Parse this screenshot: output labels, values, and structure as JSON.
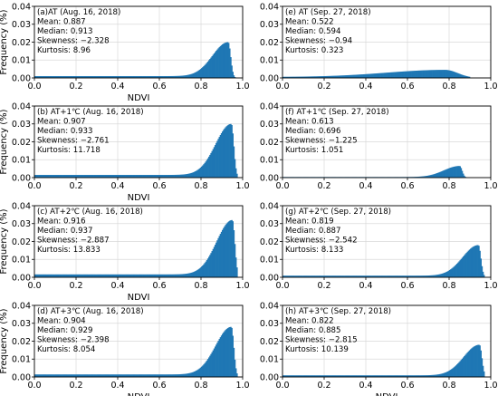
{
  "figure": {
    "theme": {
      "bar_color": "#1f77b4",
      "grid_color": "#d9d9d9",
      "axis_color": "#000000"
    }
  },
  "chart_data": [
    {
      "type": "bar",
      "xlabel": "NDVI",
      "ylabel": "Frequency (%)",
      "xlim": [
        0.0,
        1.0
      ],
      "ylim": [
        0.0,
        0.04
      ],
      "xticks": [
        "0.0",
        "0.2",
        "0.4",
        "0.6",
        "0.8",
        "1.0"
      ],
      "yticks": [
        "0.00",
        "0.01",
        "0.02",
        "0.03",
        "0.04"
      ],
      "grid": true,
      "annotation": [
        "(a)AT (Aug. 16, 2018)",
        "Mean: 0.887",
        "Median: 0.913",
        "Skewness: −2.328",
        "Kurtosis: 8.96"
      ],
      "distribution": {
        "shape": "left-skewed",
        "peak_ndvi": 0.93,
        "peak_frequency": 0.02,
        "min_ndvi": 0.0,
        "max_ndvi": 0.97
      }
    },
    {
      "type": "bar",
      "xlabel": "",
      "ylabel": "",
      "xlim": [
        0.0,
        1.0
      ],
      "ylim": [
        0.0,
        0.04
      ],
      "xticks": [
        "0.0",
        "0.2",
        "0.4",
        "0.6",
        "0.8",
        "1.0"
      ],
      "yticks": [
        "0.00",
        "0.01",
        "0.02",
        "0.03",
        "0.04"
      ],
      "grid": true,
      "annotation": [
        "(e) AT (Sep. 27, 2018)",
        "Mean: 0.522",
        "Median: 0.594",
        "Skewness: −0.94",
        "Kurtosis: 0.323"
      ],
      "distribution": {
        "shape": "broad",
        "peak_ndvi": 0.78,
        "peak_frequency": 0.0045,
        "min_ndvi": 0.0,
        "max_ndvi": 0.9
      }
    },
    {
      "type": "bar",
      "xlabel": "NDVI",
      "ylabel": "Frequency (%)",
      "xlim": [
        0.0,
        1.0
      ],
      "ylim": [
        0.0,
        0.04
      ],
      "xticks": [
        "0.0",
        "0.2",
        "0.4",
        "0.6",
        "0.8",
        "1.0"
      ],
      "yticks": [
        "0.00",
        "0.01",
        "0.02",
        "0.03",
        "0.04"
      ],
      "grid": true,
      "annotation": [
        "(b) AT+1℃ (Aug. 16, 2018)",
        "Mean: 0.907",
        "Median: 0.933",
        "Skewness: −2.761",
        "Kurtosis: 11.718"
      ],
      "distribution": {
        "shape": "left-skewed",
        "peak_ndvi": 0.945,
        "peak_frequency": 0.03,
        "min_ndvi": 0.0,
        "max_ndvi": 0.975
      }
    },
    {
      "type": "bar",
      "xlabel": "",
      "ylabel": "",
      "xlim": [
        0.0,
        1.0
      ],
      "ylim": [
        0.0,
        0.04
      ],
      "xticks": [
        "0.0",
        "0.2",
        "0.4",
        "0.6",
        "0.8",
        "1.0"
      ],
      "yticks": [
        "0.00",
        "0.01",
        "0.02",
        "0.03",
        "0.04"
      ],
      "grid": true,
      "annotation": [
        "(f) AT+1℃ (Sep. 27, 2018)",
        "Mean: 0.613",
        "Median: 0.696",
        "Skewness: −1.225",
        "Kurtosis: 1.051"
      ],
      "distribution": {
        "shape": "left-skewed",
        "peak_ndvi": 0.85,
        "peak_frequency": 0.0065,
        "min_ndvi": 0.0,
        "max_ndvi": 0.92
      }
    },
    {
      "type": "bar",
      "xlabel": "NDVI",
      "ylabel": "Frequency (%)",
      "xlim": [
        0.0,
        1.0
      ],
      "ylim": [
        0.0,
        0.04
      ],
      "xticks": [
        "0.0",
        "0.2",
        "0.4",
        "0.6",
        "0.8",
        "1.0"
      ],
      "yticks": [
        "0.00",
        "0.01",
        "0.02",
        "0.03",
        "0.04"
      ],
      "grid": true,
      "annotation": [
        "(c) AT+2℃ (Aug. 16, 2018)",
        "Mean: 0.916",
        "Median: 0.937",
        "Skewness: −2.887",
        "Kurtosis: 13.833"
      ],
      "distribution": {
        "shape": "left-skewed",
        "peak_ndvi": 0.95,
        "peak_frequency": 0.032,
        "min_ndvi": 0.0,
        "max_ndvi": 0.975
      }
    },
    {
      "type": "bar",
      "xlabel": "",
      "ylabel": "",
      "xlim": [
        0.0,
        1.0
      ],
      "ylim": [
        0.0,
        0.04
      ],
      "xticks": [
        "0.0",
        "0.2",
        "0.4",
        "0.6",
        "0.8",
        "1.0"
      ],
      "yticks": [
        "0.00",
        "0.01",
        "0.02",
        "0.03",
        "0.04"
      ],
      "grid": true,
      "annotation": [
        "(g) AT+2℃ (Sep. 27, 2018)",
        "Mean: 0.819",
        "Median: 0.887",
        "Skewness: −2.542",
        "Kurtosis: 8.133"
      ],
      "distribution": {
        "shape": "left-skewed",
        "peak_ndvi": 0.94,
        "peak_frequency": 0.018,
        "min_ndvi": 0.0,
        "max_ndvi": 0.97
      }
    },
    {
      "type": "bar",
      "xlabel": "NDVI",
      "ylabel": "Frequency (%)",
      "xlim": [
        0.0,
        1.0
      ],
      "ylim": [
        0.0,
        0.04
      ],
      "xticks": [
        "0.0",
        "0.2",
        "0.4",
        "0.6",
        "0.8",
        "1.0"
      ],
      "yticks": [
        "0.00",
        "0.01",
        "0.02",
        "0.03",
        "0.04"
      ],
      "grid": true,
      "annotation": [
        "(d) AT+3℃ (Aug. 16, 2018)",
        "Mean: 0.904",
        "Median: 0.929",
        "Skewness: −2.398",
        "Kurtosis: 8.054"
      ],
      "distribution": {
        "shape": "left-skewed",
        "peak_ndvi": 0.945,
        "peak_frequency": 0.028,
        "min_ndvi": 0.0,
        "max_ndvi": 0.975
      }
    },
    {
      "type": "bar",
      "xlabel": "NDVI",
      "ylabel": "",
      "xlim": [
        0.0,
        1.0
      ],
      "ylim": [
        0.0,
        0.04
      ],
      "xticks": [
        "0.0",
        "0.2",
        "0.4",
        "0.6",
        "0.8",
        "1.0"
      ],
      "yticks": [
        "0.00",
        "0.01",
        "0.02",
        "0.03",
        "0.04"
      ],
      "grid": true,
      "annotation": [
        "(h) AT+3℃ (Sep. 27, 2018)",
        "Mean: 0.822",
        "Median: 0.885",
        "Skewness: −2.815",
        "Kurtosis: 10.139"
      ],
      "distribution": {
        "shape": "left-skewed",
        "peak_ndvi": 0.945,
        "peak_frequency": 0.018,
        "min_ndvi": 0.0,
        "max_ndvi": 0.97
      }
    }
  ]
}
